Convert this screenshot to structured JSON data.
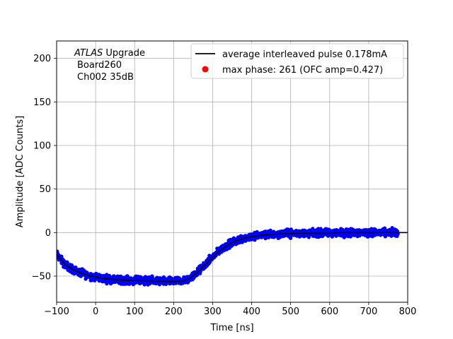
{
  "chart_data": {
    "type": "scatter",
    "xlabel": "Time [ns]",
    "ylabel": "Amplitude [ADC Counts]",
    "xlim": [
      -100,
      800
    ],
    "ylim": [
      -80,
      220
    ],
    "xticks": [
      -100,
      0,
      100,
      200,
      300,
      400,
      500,
      600,
      700,
      800
    ],
    "yticks": [
      -50,
      0,
      50,
      100,
      150,
      200
    ],
    "grid": true,
    "annotation": {
      "italic": "ATLAS",
      "rest": " Upgrade",
      "line2": "Board260",
      "line3": "Ch002 35dB"
    },
    "legend": {
      "placement": "top-right",
      "entries": [
        {
          "label": "average interleaved pulse 0.178mA",
          "marker": "line",
          "color": "#000000"
        },
        {
          "label": "max phase: 261 (OFC amp=0.427)",
          "marker": "dot",
          "color": "#ff0000"
        }
      ]
    },
    "series": [
      {
        "kind": "line",
        "color": "#000000",
        "x": [
          -100,
          -80,
          -60,
          -40,
          -20,
          0,
          25,
          50,
          75,
          100,
          125,
          150,
          175,
          200,
          225,
          240,
          260,
          280,
          300,
          320,
          340,
          360,
          380,
          400,
          425,
          450,
          475,
          500,
          550,
          600,
          650,
          700,
          750,
          800
        ],
        "y": [
          -25,
          -36,
          -42,
          -46,
          -49,
          -51,
          -53,
          -54,
          -54.5,
          -55,
          -55.2,
          -55.5,
          -55.8,
          -56,
          -55.5,
          -53,
          -46,
          -37,
          -28,
          -20,
          -14,
          -9.5,
          -6.5,
          -4.5,
          -3,
          -2,
          -1.5,
          -1,
          -0.6,
          -0.3,
          0,
          0,
          0,
          0
        ]
      },
      {
        "kind": "scatter",
        "color": "#0000ff",
        "band_halfwidth": 4.5,
        "x": [
          -100,
          -80,
          -60,
          -40,
          -20,
          0,
          25,
          50,
          75,
          100,
          125,
          150,
          175,
          200,
          225,
          240,
          260,
          280,
          300,
          320,
          340,
          360,
          380,
          400,
          425,
          450,
          475,
          500,
          550,
          600,
          650,
          700,
          750,
          775
        ],
        "y": [
          -25,
          -36,
          -42,
          -46,
          -49,
          -51,
          -53,
          -54,
          -54.5,
          -55,
          -55.2,
          -55.5,
          -55.8,
          -56,
          -55.5,
          -53,
          -46,
          -37,
          -28,
          -20,
          -14,
          -9.5,
          -6.5,
          -4.5,
          -3,
          -2,
          -1.5,
          -1,
          -0.6,
          -0.3,
          0,
          0,
          0,
          0
        ]
      }
    ]
  }
}
